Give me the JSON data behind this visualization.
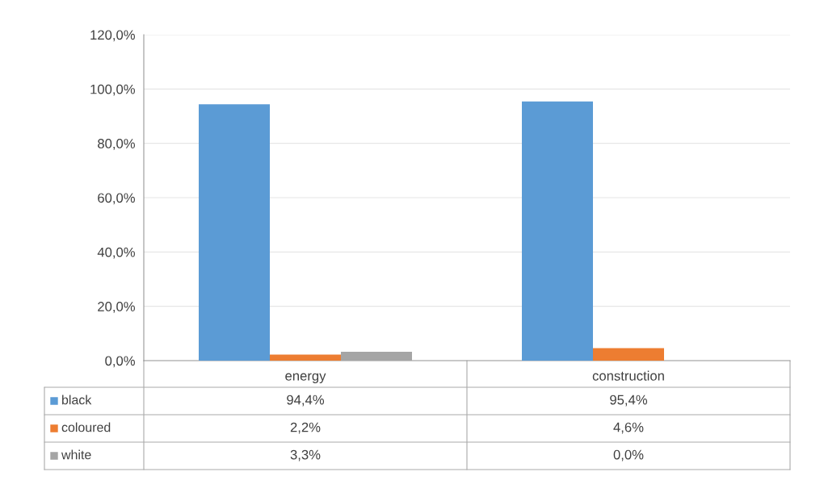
{
  "chart_data": {
    "type": "bar",
    "categories": [
      "energy",
      "construction"
    ],
    "series": [
      {
        "name": "black",
        "color": "#5b9bd5",
        "values": [
          94.4,
          95.4
        ],
        "value_labels": [
          "94,4%",
          "95,4%"
        ]
      },
      {
        "name": "coloured",
        "color": "#ed7d31",
        "values": [
          2.2,
          4.6
        ],
        "value_labels": [
          "2,2%",
          "4,6%"
        ]
      },
      {
        "name": "white",
        "color": "#a5a5a5",
        "values": [
          3.3,
          0.0
        ],
        "value_labels": [
          "3,3%",
          "0,0%"
        ]
      }
    ],
    "ylim": [
      0,
      120
    ],
    "yticks": [
      {
        "value": 0,
        "label": "0,0%"
      },
      {
        "value": 20,
        "label": "20,0%"
      },
      {
        "value": 40,
        "label": "40,0%"
      },
      {
        "value": 60,
        "label": "60,0%"
      },
      {
        "value": 80,
        "label": "80,0%"
      },
      {
        "value": 100,
        "label": "100,0%"
      },
      {
        "value": 120,
        "label": "120,0%"
      }
    ],
    "grid": "y",
    "legend": "bottom"
  }
}
